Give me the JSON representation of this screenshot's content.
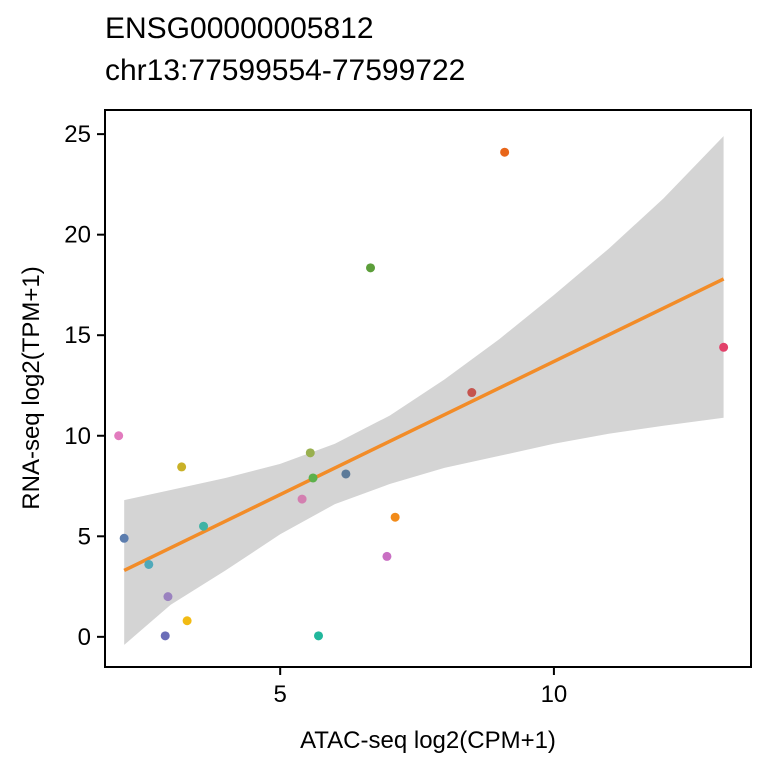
{
  "chart_data": {
    "type": "scatter",
    "title": "ENSG00000005812",
    "subtitle": "chr13:77599554-77599722",
    "xlabel": "ATAC-seq  log2(CPM+1)",
    "ylabel": "RNA-seq  log2(TPM+1)",
    "xlim": [
      1.8,
      13.6
    ],
    "ylim": [
      -1.5,
      26.2
    ],
    "x_ticks": [
      5,
      10
    ],
    "y_ticks": [
      0,
      5,
      10,
      15,
      20,
      25
    ],
    "grid": false,
    "legend": "none",
    "points": [
      {
        "x": 2.05,
        "y": 10.0,
        "color": "#E27BBE"
      },
      {
        "x": 2.15,
        "y": 4.9,
        "color": "#5C7DAE"
      },
      {
        "x": 2.6,
        "y": 3.6,
        "color": "#4FA9BA"
      },
      {
        "x": 2.9,
        "y": 0.05,
        "color": "#6B6DB8"
      },
      {
        "x": 2.95,
        "y": 2.0,
        "color": "#9A82BF"
      },
      {
        "x": 3.2,
        "y": 8.45,
        "color": "#C9B127"
      },
      {
        "x": 3.3,
        "y": 0.8,
        "color": "#F2BB13"
      },
      {
        "x": 3.6,
        "y": 5.5,
        "color": "#3FB3A5"
      },
      {
        "x": 5.4,
        "y": 6.85,
        "color": "#D37FB0"
      },
      {
        "x": 5.55,
        "y": 9.15,
        "color": "#99B04F"
      },
      {
        "x": 5.6,
        "y": 7.9,
        "color": "#5CB04B"
      },
      {
        "x": 5.7,
        "y": 0.05,
        "color": "#21B79C"
      },
      {
        "x": 6.2,
        "y": 8.1,
        "color": "#5C7A99"
      },
      {
        "x": 6.65,
        "y": 18.35,
        "color": "#5C9E3A"
      },
      {
        "x": 6.95,
        "y": 4.0,
        "color": "#C96FC3"
      },
      {
        "x": 7.1,
        "y": 5.95,
        "color": "#F28B1A"
      },
      {
        "x": 8.5,
        "y": 12.15,
        "color": "#C5544E"
      },
      {
        "x": 9.1,
        "y": 24.1,
        "color": "#E8661A"
      },
      {
        "x": 13.1,
        "y": 14.4,
        "color": "#E2416A"
      }
    ],
    "trend_line": {
      "x": [
        2.15,
        13.1
      ],
      "y": [
        3.3,
        17.8
      ],
      "color": "#F28C28"
    },
    "confidence_band": {
      "x": [
        2.15,
        3.0,
        4.0,
        5.0,
        6.0,
        7.0,
        8.0,
        9.0,
        10.0,
        11.0,
        12.0,
        13.1
      ],
      "upper": [
        6.8,
        7.3,
        7.9,
        8.6,
        9.6,
        11.0,
        12.8,
        14.8,
        17.0,
        19.3,
        21.8,
        24.9
      ],
      "lower": [
        -0.4,
        1.6,
        3.3,
        5.1,
        6.6,
        7.6,
        8.4,
        9.0,
        9.6,
        10.1,
        10.5,
        10.9
      ],
      "color": "#D4D4D4"
    }
  }
}
